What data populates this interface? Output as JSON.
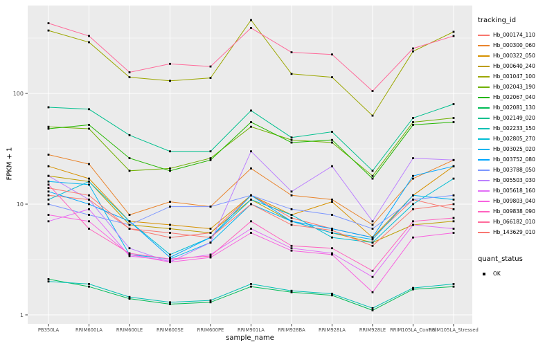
{
  "figure": {
    "panel_bg": "#EBEBEB",
    "grid_color": "#FFFFFF",
    "axis_text_color": "#4D4D4D",
    "tick_color": "#333333",
    "point_color": "#000000"
  },
  "legend": {
    "tracking_title": "tracking_id",
    "quant_title": "quant_status",
    "quant_ok_label": "OK"
  },
  "chart_data": {
    "type": "line",
    "title": "",
    "xlabel": "sample_name",
    "ylabel": "FPKM + 1",
    "y_scale": "log10",
    "y_ticks": [
      1,
      10,
      100
    ],
    "y_minor_ticks": [
      3.1623,
      31.623,
      316.23
    ],
    "ylim": [
      1,
      620
    ],
    "grid": true,
    "legend_position": "right",
    "categories": [
      "PB350LA",
      "RRIM600LA",
      "RRIM600LE",
      "RRIM600SE",
      "RRIM600PE",
      "RRIM901LA",
      "RRIM928BA",
      "RRIM928LA",
      "RRIM928LE",
      "RRIM105LA_Control",
      "RRIM105LA_Stressed"
    ],
    "series": [
      {
        "name": "Hb_000174_110",
        "color": "#F8766D",
        "values": [
          12,
          11,
          6,
          5,
          5.5,
          12,
          7.5,
          6,
          5,
          11,
          9
        ]
      },
      {
        "name": "Hb_000300_060",
        "color": "#E9842C",
        "values": [
          28,
          23,
          8,
          10.5,
          9.5,
          21,
          12,
          11,
          6.5,
          17,
          25
        ]
      },
      {
        "name": "Hb_000322_050",
        "color": "#D69100",
        "values": [
          22,
          17,
          7,
          6.5,
          6,
          12,
          8,
          10.5,
          5,
          12,
          22
        ]
      },
      {
        "name": "Hb_000640_240",
        "color": "#BC9D00",
        "values": [
          18,
          16,
          6.5,
          6,
          5.5,
          11,
          7,
          5.5,
          4.5,
          6.5,
          7
        ]
      },
      {
        "name": "Hb_001047_100",
        "color": "#9CA700",
        "values": [
          370,
          290,
          140,
          130,
          138,
          460,
          150,
          140,
          63,
          240,
          360
        ]
      },
      {
        "name": "Hb_002043_190",
        "color": "#6FB000",
        "values": [
          50,
          48,
          20,
          21,
          26,
          50,
          38,
          36,
          18,
          55,
          60
        ]
      },
      {
        "name": "Hb_002067_040",
        "color": "#24B700",
        "values": [
          48,
          52,
          26,
          20,
          25,
          55,
          36,
          38,
          17,
          52,
          55
        ]
      },
      {
        "name": "Hb_002081_130",
        "color": "#00BC56",
        "values": [
          2.1,
          1.8,
          1.4,
          1.25,
          1.3,
          1.8,
          1.6,
          1.5,
          1.1,
          1.7,
          1.8
        ]
      },
      {
        "name": "Hb_002149_020",
        "color": "#00C08E",
        "values": [
          75,
          72,
          42,
          30,
          30,
          70,
          40,
          45,
          20,
          60,
          80
        ]
      },
      {
        "name": "Hb_002233_150",
        "color": "#00C0B4",
        "values": [
          2.0,
          1.9,
          1.45,
          1.3,
          1.35,
          1.9,
          1.65,
          1.55,
          1.15,
          1.75,
          1.9
        ]
      },
      {
        "name": "Hb_002805_270",
        "color": "#00BDD4",
        "values": [
          11,
          16,
          7,
          3.5,
          5,
          11,
          8,
          5,
          4.5,
          10,
          17
        ]
      },
      {
        "name": "Hb_003025_020",
        "color": "#00B4EF",
        "values": [
          16,
          15,
          3.5,
          3.2,
          4.5,
          10,
          7,
          5.5,
          4.8,
          12,
          11
        ]
      },
      {
        "name": "Hb_003752_080",
        "color": "#00A6FF",
        "values": [
          13,
          10,
          7,
          3.3,
          5,
          12,
          7,
          6,
          5,
          18,
          22
        ]
      },
      {
        "name": "Hb_003788_050",
        "color": "#7C96FF",
        "values": [
          10,
          8,
          6.5,
          9.5,
          9.5,
          12,
          9,
          8,
          6,
          11,
          12
        ]
      },
      {
        "name": "Hb_005503_030",
        "color": "#BC81FF",
        "values": [
          18,
          11,
          4,
          3,
          4.5,
          30,
          13,
          22,
          7,
          26,
          25
        ]
      },
      {
        "name": "Hb_005618_160",
        "color": "#E26EF7",
        "values": [
          7,
          9,
          3.4,
          3.1,
          3.5,
          6,
          4,
          3.6,
          2.2,
          6.5,
          6
        ]
      },
      {
        "name": "Hb_009803_040",
        "color": "#F863DF",
        "values": [
          8,
          7,
          3.5,
          3,
          3.3,
          5.5,
          3.8,
          3.5,
          1.6,
          5,
          5.5
        ]
      },
      {
        "name": "Hb_009838_090",
        "color": "#FF62BF",
        "values": [
          15,
          6,
          3.6,
          3.2,
          3.4,
          7,
          4.2,
          4,
          2.5,
          7,
          7.5
        ]
      },
      {
        "name": "Hb_066182_010",
        "color": "#FF6A9A",
        "values": [
          430,
          330,
          155,
          185,
          175,
          390,
          235,
          225,
          105,
          255,
          330
        ]
      },
      {
        "name": "Hb_143629_010",
        "color": "#F97771",
        "values": [
          14,
          12,
          6,
          5.5,
          5,
          10,
          6.5,
          5.8,
          4.2,
          9,
          10
        ]
      }
    ]
  }
}
